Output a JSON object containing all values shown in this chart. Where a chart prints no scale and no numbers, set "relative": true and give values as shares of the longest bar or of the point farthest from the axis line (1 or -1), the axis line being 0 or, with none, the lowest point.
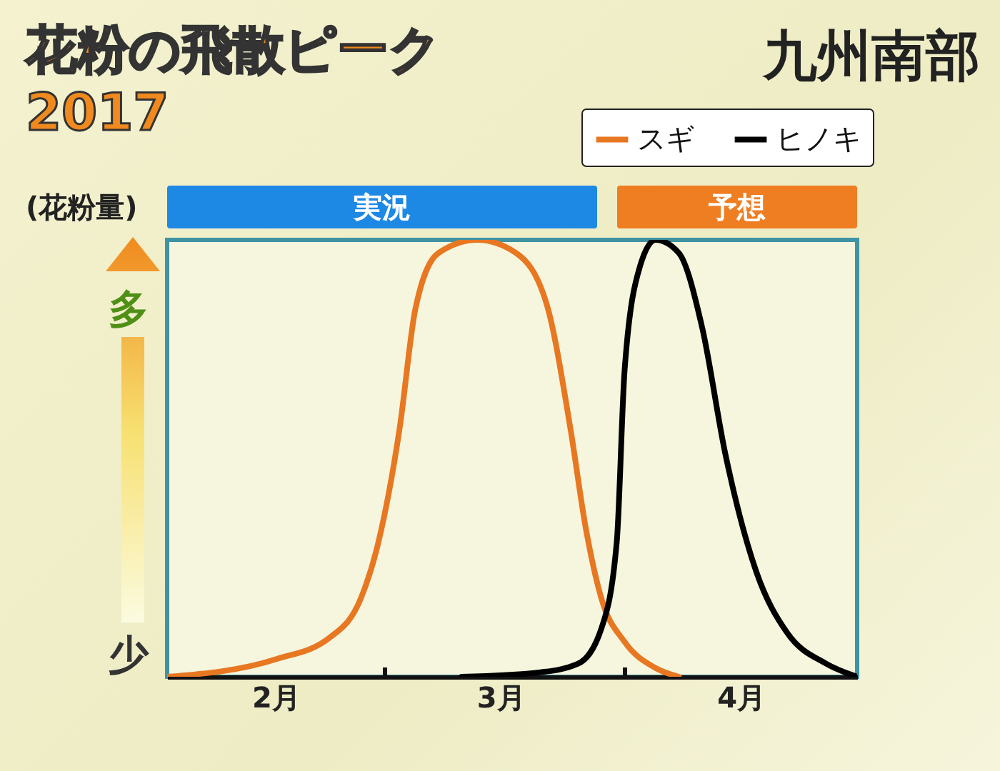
{
  "chart_data": {
    "type": "line",
    "title": "花粉の飛散ピーク 2017",
    "subtitle": "九州南部",
    "ylabel": "(花粉量)",
    "annotations": [
      "多",
      "少",
      "実況",
      "予想"
    ],
    "relative": true,
    "legend": "top right",
    "line_style": "solid",
    "xlim": [
      "2017-02-01",
      "2017-05-01"
    ],
    "xticks": [
      {
        "value": "2017-03-01",
        "label": null
      },
      {
        "value": "2017-04-01",
        "label": null
      },
      {
        "value": "2017-02-15",
        "label": "2月"
      },
      {
        "value": "2017-03-16",
        "label": "3月"
      },
      {
        "value": "2017-04-16",
        "label": "4月"
      }
    ],
    "series": [
      {
        "name": "スギ",
        "color": "#e87722",
        "x": [
          "2017-02-01",
          "2017-02-15",
          "2017-02-22",
          "2017-02-26",
          "2017-02-28",
          "2017-03-03",
          "2017-03-05",
          "2017-03-08",
          "2017-03-13",
          "2017-03-18",
          "2017-03-22",
          "2017-03-25",
          "2017-03-27",
          "2017-03-29",
          "2017-04-01",
          "2017-04-05",
          "2017-04-08"
        ],
        "values": [
          0,
          0.04,
          0.09,
          0.18,
          0.29,
          0.57,
          0.84,
          0.97,
          1,
          0.97,
          0.85,
          0.57,
          0.34,
          0.18,
          0.08,
          0.02,
          0
        ]
      },
      {
        "name": "ヒノキ",
        "color": "#000000",
        "x": [
          "2017-03-11",
          "2017-03-21",
          "2017-03-26",
          "2017-03-29",
          "2017-03-31",
          "2017-04-01",
          "2017-04-03",
          "2017-04-05",
          "2017-04-08",
          "2017-04-11",
          "2017-04-14",
          "2017-04-18",
          "2017-04-22",
          "2017-04-27",
          "2017-05-01"
        ],
        "values": [
          0,
          0.01,
          0.03,
          0.11,
          0.31,
          0.7,
          0.94,
          1,
          0.97,
          0.8,
          0.51,
          0.24,
          0.1,
          0.03,
          0
        ]
      }
    ]
  }
}
